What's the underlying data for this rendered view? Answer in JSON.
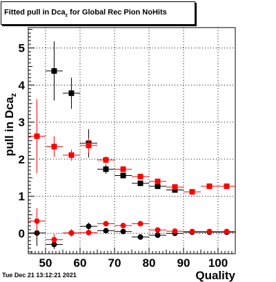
{
  "title": {
    "main": "Fitted pull in Dca",
    "sub": "z",
    "suffix": " for Global Rec Pion NoHits"
  },
  "timestamp": "Tue Dec 21 13:12:21 2021",
  "chart_data": {
    "type": "scatter",
    "title": "Fitted pull in Dca_z for Global Rec Pion NoHits",
    "xlabel": "Quality",
    "ylabel": "pull in Dca_z",
    "xlim": [
      45,
      105
    ],
    "ylim": [
      -0.55,
      5.55
    ],
    "x_ticks": [
      "50",
      "60",
      "70",
      "80",
      "90",
      "100"
    ],
    "y_ticks": [
      "0",
      "1",
      "2",
      "3",
      "4",
      "5"
    ],
    "grid": true,
    "x_bin_halfwidth": 2.5,
    "series": [
      {
        "marker": "square",
        "color": "#000000",
        "points": [
          {
            "x": 47.5,
            "y": null,
            "err": null
          },
          {
            "x": 52.5,
            "y": 4.38,
            "err": 0.8
          },
          {
            "x": 57.5,
            "y": 3.78,
            "err": 0.42
          },
          {
            "x": 62.5,
            "y": 2.43,
            "err": 0.38
          },
          {
            "x": 67.5,
            "y": 1.73,
            "err": 0.12
          },
          {
            "x": 72.5,
            "y": 1.56,
            "err": 0.08
          },
          {
            "x": 77.5,
            "y": 1.35,
            "err": 0.06
          },
          {
            "x": 82.5,
            "y": 1.27,
            "err": 0.05
          },
          {
            "x": 87.5,
            "y": 1.17,
            "err": 0.05
          }
        ]
      },
      {
        "marker": "square",
        "color": "#ff0000",
        "points": [
          {
            "x": 47.5,
            "y": 2.62,
            "err": 1.0
          },
          {
            "x": 52.5,
            "y": 2.34,
            "err": 0.28
          },
          {
            "x": 57.5,
            "y": 2.11,
            "err": 0.15
          },
          {
            "x": 62.5,
            "y": 2.37,
            "err": 0.2
          },
          {
            "x": 67.5,
            "y": 1.98,
            "err": 0.1
          },
          {
            "x": 72.5,
            "y": 1.73,
            "err": 0.08
          },
          {
            "x": 77.5,
            "y": 1.53,
            "err": 0.06
          },
          {
            "x": 82.5,
            "y": 1.4,
            "err": 0.05
          },
          {
            "x": 87.5,
            "y": 1.25,
            "err": 0.05
          },
          {
            "x": 92.5,
            "y": 1.12,
            "err": 0.05
          },
          {
            "x": 97.5,
            "y": 1.27,
            "err": 0.04
          },
          {
            "x": 102.5,
            "y": 1.27,
            "err": 0.04
          }
        ]
      },
      {
        "marker": "circle",
        "color": "#000000",
        "points": [
          {
            "x": 47.5,
            "y": 0.01,
            "err": 0.35
          },
          {
            "x": 52.5,
            "y": -0.3,
            "err": 0.12
          },
          {
            "x": 57.5,
            "y": 0.01,
            "err": 0.06
          },
          {
            "x": 62.5,
            "y": 0.19,
            "err": 0.1
          },
          {
            "x": 67.5,
            "y": 0.07,
            "err": 0.05
          },
          {
            "x": 72.5,
            "y": 0.05,
            "err": 0.04
          },
          {
            "x": 77.5,
            "y": -0.1,
            "err": 0.04
          },
          {
            "x": 82.5,
            "y": -0.05,
            "err": 0.03
          },
          {
            "x": 87.5,
            "y": 0.0,
            "err": 0.03
          },
          {
            "x": 92.5,
            "y": 0.03,
            "err": 0.03
          },
          {
            "x": 97.5,
            "y": 0.03,
            "err": 0.03
          },
          {
            "x": 102.5,
            "y": 0.03,
            "err": 0.03
          }
        ]
      },
      {
        "marker": "circle",
        "color": "#ff0000",
        "points": [
          {
            "x": 47.5,
            "y": 0.33,
            "err": 0.35
          },
          {
            "x": 52.5,
            "y": -0.17,
            "err": 0.15
          },
          {
            "x": 57.5,
            "y": 0.01,
            "err": 0.1
          },
          {
            "x": 62.5,
            "y": 0.02,
            "err": 0.08
          },
          {
            "x": 67.5,
            "y": 0.26,
            "err": 0.06
          },
          {
            "x": 72.5,
            "y": 0.21,
            "err": 0.05
          },
          {
            "x": 77.5,
            "y": 0.26,
            "err": 0.04
          },
          {
            "x": 82.5,
            "y": 0.09,
            "err": 0.04
          },
          {
            "x": 87.5,
            "y": 0.06,
            "err": 0.04
          },
          {
            "x": 92.5,
            "y": 0.05,
            "err": 0.03
          },
          {
            "x": 97.5,
            "y": 0.05,
            "err": 0.03
          },
          {
            "x": 102.5,
            "y": 0.05,
            "err": 0.03
          }
        ]
      }
    ]
  }
}
